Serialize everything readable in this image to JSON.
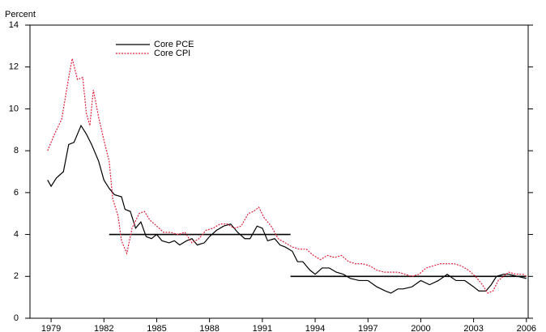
{
  "chart_data": {
    "type": "line",
    "y_label": "Percent",
    "xlim": [
      1977.8,
      2006.1
    ],
    "xticks": [
      1979,
      1982,
      1985,
      1988,
      1991,
      1994,
      1997,
      2000,
      2003,
      2006
    ],
    "ylim": [
      0,
      14
    ],
    "yticks": [
      0,
      2,
      4,
      6,
      8,
      10,
      12,
      14
    ],
    "grid": false,
    "legend": "upper left",
    "series": [
      {
        "name": "Core PCE",
        "color": "#000000",
        "dash": "solid",
        "x": [
          1978.8,
          1979.0,
          1979.3,
          1979.7,
          1980.0,
          1980.3,
          1980.7,
          1981.0,
          1981.3,
          1981.7,
          1982.0,
          1982.3,
          1982.6,
          1983.0,
          1983.2,
          1983.5,
          1983.8,
          1984.1,
          1984.4,
          1984.7,
          1985.0,
          1985.3,
          1985.7,
          1986.0,
          1986.3,
          1986.7,
          1987.0,
          1987.3,
          1987.7,
          1988.0,
          1988.4,
          1988.8,
          1989.2,
          1989.6,
          1990.0,
          1990.3,
          1990.7,
          1991.0,
          1991.3,
          1991.7,
          1992.0,
          1992.3,
          1992.7,
          1993.0,
          1993.3,
          1993.7,
          1994.0,
          1994.4,
          1994.8,
          1995.2,
          1995.6,
          1996.0,
          1996.5,
          1997.0,
          1997.5,
          1998.0,
          1998.3,
          1998.7,
          1999.0,
          1999.5,
          2000.0,
          2000.5,
          2001.0,
          2001.5,
          2002.0,
          2002.5,
          2003.0,
          2003.3,
          2003.7,
          2004.0,
          2004.3,
          2004.7,
          2005.0,
          2005.5,
          2006.0
        ],
        "values": [
          6.6,
          6.3,
          6.7,
          7.0,
          8.3,
          8.4,
          9.2,
          8.8,
          8.3,
          7.5,
          6.6,
          6.2,
          5.9,
          5.8,
          5.2,
          5.1,
          4.3,
          4.6,
          3.9,
          3.8,
          4.0,
          3.7,
          3.6,
          3.7,
          3.5,
          3.7,
          3.8,
          3.5,
          3.6,
          3.9,
          4.2,
          4.4,
          4.5,
          4.1,
          3.8,
          3.8,
          4.4,
          4.3,
          3.7,
          3.8,
          3.5,
          3.4,
          3.2,
          2.7,
          2.7,
          2.3,
          2.1,
          2.4,
          2.4,
          2.2,
          2.1,
          1.9,
          1.8,
          1.8,
          1.5,
          1.3,
          1.2,
          1.4,
          1.4,
          1.5,
          1.8,
          1.6,
          1.8,
          2.1,
          1.8,
          1.8,
          1.5,
          1.3,
          1.3,
          1.6,
          2.0,
          2.1,
          2.1,
          2.0,
          1.9
        ]
      },
      {
        "name": "Core CPI",
        "color": "#e0203c",
        "dash": "dotted",
        "x": [
          1978.8,
          1979.2,
          1979.6,
          1980.0,
          1980.2,
          1980.5,
          1980.8,
          1981.0,
          1981.2,
          1981.4,
          1981.7,
          1982.0,
          1982.3,
          1982.5,
          1982.8,
          1983.0,
          1983.3,
          1983.6,
          1984.0,
          1984.3,
          1984.6,
          1985.0,
          1985.4,
          1985.8,
          1986.2,
          1986.6,
          1987.0,
          1987.4,
          1987.8,
          1988.2,
          1988.6,
          1989.0,
          1989.4,
          1989.8,
          1990.2,
          1990.5,
          1990.8,
          1991.1,
          1991.5,
          1991.9,
          1992.3,
          1992.7,
          1993.1,
          1993.5,
          1993.9,
          1994.3,
          1994.7,
          1995.1,
          1995.5,
          1995.9,
          1996.3,
          1996.7,
          1997.1,
          1997.5,
          1997.9,
          1998.3,
          1998.7,
          1999.1,
          1999.5,
          1999.9,
          2000.3,
          2000.7,
          2001.1,
          2001.5,
          2001.9,
          2002.3,
          2002.7,
          2003.1,
          2003.5,
          2003.8,
          2004.1,
          2004.4,
          2004.7,
          2005.0,
          2005.4,
          2005.8,
          2006.0
        ],
        "values": [
          8.0,
          8.8,
          9.5,
          11.5,
          12.4,
          11.4,
          11.5,
          9.8,
          9.2,
          10.9,
          9.6,
          8.5,
          7.5,
          5.7,
          4.9,
          3.7,
          3.1,
          4.3,
          5.0,
          5.1,
          4.7,
          4.4,
          4.1,
          4.1,
          4.0,
          4.1,
          3.6,
          3.8,
          4.2,
          4.3,
          4.5,
          4.5,
          4.3,
          4.4,
          5.0,
          5.1,
          5.3,
          4.8,
          4.4,
          3.8,
          3.6,
          3.4,
          3.3,
          3.3,
          3.0,
          2.8,
          3.0,
          2.9,
          3.0,
          2.7,
          2.6,
          2.6,
          2.5,
          2.3,
          2.2,
          2.2,
          2.2,
          2.1,
          2.0,
          2.1,
          2.4,
          2.5,
          2.6,
          2.6,
          2.6,
          2.5,
          2.3,
          2.0,
          1.6,
          1.2,
          1.3,
          1.8,
          2.0,
          2.2,
          2.1,
          2.1,
          2.0
        ]
      }
    ],
    "reference_lines": [
      {
        "y": 4,
        "x": [
          1982.3,
          1992.6
        ]
      },
      {
        "y": 2,
        "x": [
          1992.6,
          2006.0
        ]
      }
    ]
  }
}
